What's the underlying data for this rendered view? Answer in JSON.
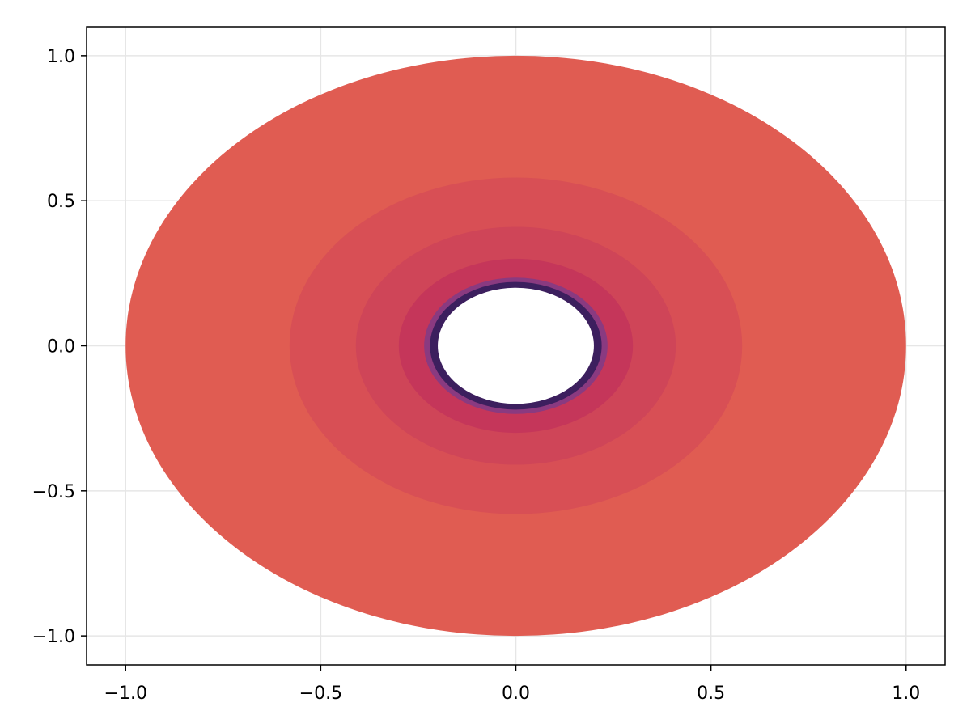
{
  "chart_data": {
    "type": "contour",
    "title": "",
    "xlabel": "",
    "ylabel": "",
    "xlim": [
      -1.1,
      1.1
    ],
    "ylim": [
      -1.1,
      1.1
    ],
    "grid": true,
    "x_ticks": [
      {
        "value": -1.0,
        "label": "−1.0"
      },
      {
        "value": -0.5,
        "label": "−0.5"
      },
      {
        "value": 0.0,
        "label": "0.0"
      },
      {
        "value": 0.5,
        "label": "0.5"
      },
      {
        "value": 1.0,
        "label": "1.0"
      }
    ],
    "y_ticks": [
      {
        "value": 1.0,
        "label": "1.0"
      },
      {
        "value": 0.5,
        "label": "0.5"
      },
      {
        "value": 0.0,
        "label": "0.0"
      },
      {
        "value": -0.5,
        "label": "−0.5"
      },
      {
        "value": -1.0,
        "label": "−1.0"
      }
    ],
    "domain": {
      "shape": "annulus",
      "center": [
        0,
        0
      ],
      "outer_radius": 1.0,
      "inner_radius": 0.2
    },
    "bands": [
      {
        "r_outer": 1.0,
        "r_inner": 0.58,
        "color": "#e05c52"
      },
      {
        "r_outer": 0.58,
        "r_inner": 0.41,
        "color": "#d84f55"
      },
      {
        "r_outer": 0.41,
        "r_inner": 0.3,
        "color": "#cf4558"
      },
      {
        "r_outer": 0.3,
        "r_inner": 0.235,
        "color": "#c5365a"
      },
      {
        "r_outer": 0.235,
        "r_inner": 0.22,
        "color": "#8a3a80"
      },
      {
        "r_outer": 0.22,
        "r_inner": 0.2,
        "color": "#3c1f5e"
      }
    ],
    "hole_color": "#ffffff",
    "grid_color": "#e6e6e6"
  }
}
